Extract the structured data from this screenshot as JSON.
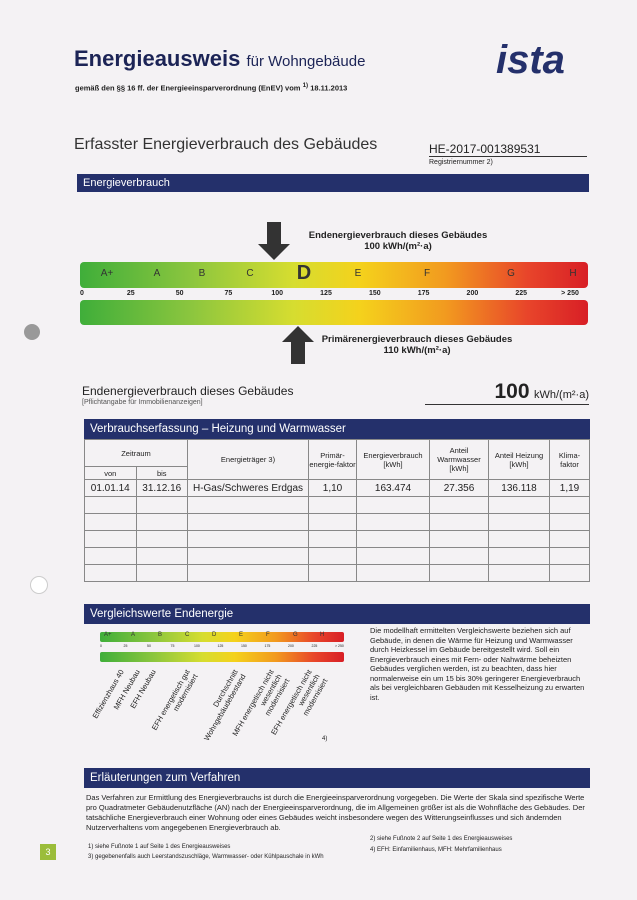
{
  "header": {
    "title": "Energieausweis",
    "title_suffix": "für Wohngebäude",
    "subtitle": "gemäß den §§ 16 ff. der Energieeinsparverordnung (EnEV) vom",
    "subtitle_note": "1)",
    "date": "18.11.2013",
    "logo": "ista"
  },
  "section": {
    "title": "Erfasster Energieverbrauch des Gebäudes",
    "reg_number": "HE-2017-001389531",
    "reg_label": "Registriernummer 2)"
  },
  "band": "Energieverbrauch",
  "scale": {
    "top_label": "Endenergieverbrauch dieses Gebäudes",
    "top_value": "100 kWh/(m²·a)",
    "classes": [
      "A+",
      "A",
      "B",
      "C",
      "D",
      "E",
      "F",
      "G",
      "H"
    ],
    "ticks": [
      "0",
      "25",
      "50",
      "75",
      "100",
      "125",
      "150",
      "175",
      "200",
      "225",
      "> 250"
    ],
    "bottom_label": "Primärenergieverbrauch dieses Gebäudes",
    "bottom_value": "110 kWh/(m²·a)"
  },
  "summary": {
    "label": "Endenergieverbrauch dieses Gebäudes",
    "note": "[Pflichtangabe für Immobilienanzeigen]",
    "value": "100",
    "unit": "kWh/(m²·a)"
  },
  "table": {
    "title": "Verbrauchserfassung – Heizung und Warmwasser",
    "headers": [
      "Zeitraum",
      "Energieträger 3)",
      "Primär-energie-faktor",
      "Energieverbrauch [kWh]",
      "Anteil Warmwasser [kWh]",
      "Anteil Heizung [kWh]",
      "Klima-faktor"
    ],
    "subheaders": [
      "von",
      "bis"
    ],
    "rows": [
      [
        "01.01.14",
        "31.12.16",
        "H-Gas/Schweres Erdgas",
        "1,10",
        "163.474",
        "27.356",
        "136.118",
        "1,19"
      ]
    ]
  },
  "comparison": {
    "title": "Vergleichswerte Endenergie",
    "labels": [
      "Effizienzhaus 40",
      "MFH Neubau",
      "EFH Neubau",
      "EFH energetisch gut modernisiert",
      "Durchschnitt Wohngebäudebestand",
      "MFH energetisch nicht wesentlich modernisiert",
      "EFH energetisch nicht wesentlich modernisiert"
    ],
    "note": "4)",
    "text": "Die modellhaft ermittelten Vergleichswerte beziehen sich auf Gebäude, in denen die Wärme für Heizung und Warmwasser durch Heizkessel im Gebäude bereitgestellt wird. Soll ein Energieverbrauch eines mit Fern- oder Nahwärme beheizten Gebäudes verglichen werden, ist zu beachten, dass hier normalerweise ein um 15 bis 30% geringerer Energieverbrauch als bei vergleichbaren Gebäuden mit Kesselheizung zu erwarten ist."
  },
  "explanation": {
    "title": "Erläuterungen zum Verfahren",
    "text": "Das Verfahren zur Ermittlung des Energieverbrauchs ist durch die Energieeinsparverordnung vorgegeben. Die Werte der Skala sind spezifische Werte pro Quadratmeter Gebäudenutzfläche (AN) nach der Energieeinsparverordnung, die im Allgemeinen größer ist als die Wohnfläche des Gebäudes. Der tatsächliche Energieverbrauch einer Wohnung oder eines Gebäudes weicht insbesondere wegen des Witterungseinflusses und sich ändernden Nutzerverhaltens vom angegebenen Energieverbrauch ab.",
    "footnotes": [
      "1) siehe Fußnote 1 auf Seite 1 des Energieausweises",
      "2) siehe Fußnote 2 auf Seite 1 des Energieausweises",
      "3) gegebenenfalls auch Leerstandszuschläge, Warmwasser- oder Kühlpauschale in kWh",
      "4) EFH: Einfamilienhaus, MFH: Mehrfamilienhaus"
    ],
    "page": "3"
  }
}
